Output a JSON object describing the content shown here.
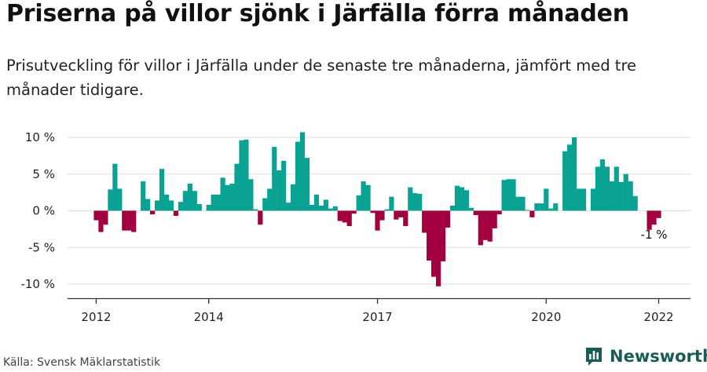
{
  "header": {
    "title": "Priserna på villor sjönk i Järfälla förra månaden",
    "subtitle": "Prisutveckling för villor i Järfälla under de senaste tre månaderna, jämfört med tre månader tidigare."
  },
  "footer": {
    "source": "Källa: Svensk Mäklarstatistik",
    "brand": "Newsworthy",
    "brand_icon": "newsworthy-logo-icon"
  },
  "colors": {
    "positive": "#0aa293",
    "negative": "#a3003f",
    "grid": "#dddddd",
    "axis": "#333333",
    "brand": "#1a5c55"
  },
  "chart_data": {
    "type": "bar",
    "title": "Priserna på villor sjönk i Järfälla förra månaden",
    "xlabel": "",
    "ylabel": "",
    "ylim": [
      -11,
      11
    ],
    "yticks": [
      10,
      5,
      0,
      -5,
      -10
    ],
    "ytick_labels": [
      "10 %",
      "5 %",
      "0 %",
      "-5 %",
      "-10 %"
    ],
    "x_start": "2012-01",
    "x_tick_labels": [
      {
        "label": "2012",
        "index": 0
      },
      {
        "label": "2014",
        "index": 24
      },
      {
        "label": "2017",
        "index": 60
      },
      {
        "label": "2020",
        "index": 96
      },
      {
        "label": "2022",
        "index": 120
      }
    ],
    "annotation": {
      "label": "-1 %",
      "index": 119
    },
    "values": [
      -1.3,
      -2.9,
      -1.9,
      2.9,
      6.4,
      3.0,
      -2.7,
      -2.7,
      -2.9,
      0.0,
      4.0,
      1.6,
      -0.5,
      1.4,
      5.7,
      2.2,
      1.4,
      -0.7,
      1.2,
      2.7,
      3.7,
      2.7,
      0.9,
      0.0,
      0.8,
      2.2,
      2.2,
      4.5,
      3.5,
      3.7,
      6.4,
      9.6,
      9.7,
      4.3,
      0.2,
      -1.9,
      1.7,
      3.0,
      8.7,
      5.5,
      6.8,
      1.1,
      3.6,
      9.4,
      10.7,
      7.2,
      0.8,
      2.2,
      0.7,
      1.5,
      0.3,
      0.6,
      -1.4,
      -1.6,
      -2.1,
      -0.4,
      2.1,
      4.0,
      3.5,
      -0.3,
      -2.7,
      -1.3,
      0.2,
      1.9,
      -1.2,
      -0.9,
      -2.1,
      3.2,
      2.4,
      2.3,
      -3.0,
      -6.8,
      -9.0,
      -10.3,
      -6.9,
      -2.3,
      0.7,
      3.4,
      3.2,
      2.8,
      0.4,
      -0.6,
      -4.7,
      -4.0,
      -4.2,
      -2.4,
      -0.5,
      4.2,
      4.3,
      4.3,
      1.9,
      1.9,
      0.1,
      -0.9,
      1.0,
      1.0,
      3.0,
      0.3,
      1.0,
      0.0,
      8.1,
      9.0,
      10.0,
      3.0,
      3.0,
      0.0,
      3.0,
      6.0,
      7.0,
      6.0,
      4.0,
      6.0,
      3.9,
      5.0,
      4.0,
      2.0,
      0.0,
      0.0,
      -2.6,
      -1.9,
      -1.0
    ]
  }
}
